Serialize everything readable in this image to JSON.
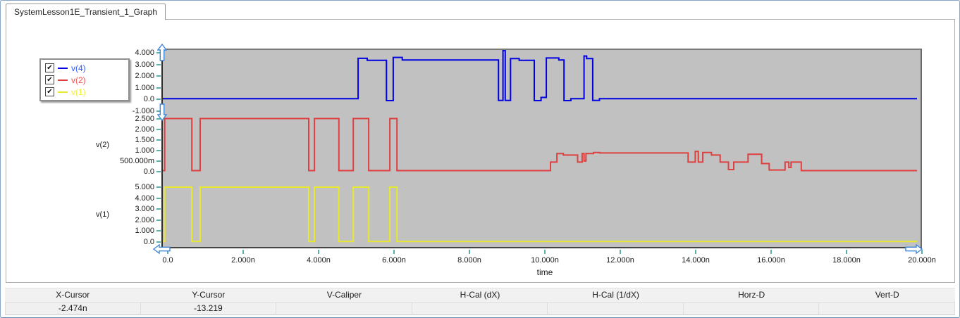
{
  "window": {
    "tab_label": "SystemLesson1E_Transient_1_Graph"
  },
  "legend": {
    "items": [
      {
        "label": "v(4)",
        "color": "#2e5bff",
        "line_color": "#0000e0",
        "checked": true
      },
      {
        "label": "v(2)",
        "color": "#f25050",
        "line_color": "#de4040",
        "checked": true
      },
      {
        "label": "v(1)",
        "color": "#f0f03c",
        "line_color": "#e8e82e",
        "checked": true
      }
    ],
    "check_glyph": "✔"
  },
  "chart_data": {
    "type": "line",
    "title": "",
    "xlabel": "time",
    "x_unit": "ns",
    "xlim": [
      0,
      20
    ],
    "grid": false,
    "tick_color": "#58b1ad",
    "background": "#c1c1c1",
    "x_ticks": [
      {
        "label": "0.0",
        "t": 0
      },
      {
        "label": "2.000n",
        "t": 2
      },
      {
        "label": "4.000n",
        "t": 4
      },
      {
        "label": "6.000n",
        "t": 6
      },
      {
        "label": "8.000n",
        "t": 8
      },
      {
        "label": "10.000n",
        "t": 10
      },
      {
        "label": "12.000n",
        "t": 12
      },
      {
        "label": "14.000n",
        "t": 14
      },
      {
        "label": "16.000n",
        "t": 16
      },
      {
        "label": "18.000n",
        "t": 18
      },
      {
        "label": "20.000n",
        "t": 20
      }
    ],
    "panels": [
      {
        "name": "v(4)",
        "color": "#0000e0",
        "ylim": [
          -1.45,
          4.25
        ],
        "y_ticks": [
          {
            "label": "4.000",
            "v": 4
          },
          {
            "label": "3.000",
            "v": 3
          },
          {
            "label": "2.000",
            "v": 2
          },
          {
            "label": "1.000",
            "v": 1
          },
          {
            "label": "0.0",
            "v": 0
          },
          {
            "label": "-1.000",
            "v": -1
          }
        ],
        "steps": [
          [
            0,
            0.05
          ],
          [
            5.18,
            3.52
          ],
          [
            5.42,
            3.35
          ],
          [
            5.93,
            -0.12
          ],
          [
            6.11,
            3.6
          ],
          [
            6.35,
            3.38
          ],
          [
            8.9,
            -0.1
          ],
          [
            9.02,
            4.2
          ],
          [
            9.08,
            -0.1
          ],
          [
            9.22,
            3.5
          ],
          [
            9.45,
            3.35
          ],
          [
            9.85,
            -0.12
          ],
          [
            10.03,
            0.15
          ],
          [
            10.17,
            3.55
          ],
          [
            10.5,
            3.38
          ],
          [
            10.64,
            -0.12
          ],
          [
            10.82,
            0.05
          ],
          [
            11.17,
            3.72
          ],
          [
            11.24,
            3.5
          ],
          [
            11.4,
            -0.1
          ],
          [
            11.58,
            0.05
          ],
          [
            20,
            0.05
          ]
        ]
      },
      {
        "name": "v(2)",
        "color": "#de4040",
        "ylim": [
          -0.35,
          2.75
        ],
        "y_ticks": [
          {
            "label": "2.500",
            "v": 2.5
          },
          {
            "label": "2.000",
            "v": 2
          },
          {
            "label": "1.500",
            "v": 1.5
          },
          {
            "label": "1.000",
            "v": 1
          },
          {
            "label": "500.000m",
            "v": 0.5
          },
          {
            "label": "0.0",
            "v": 0
          }
        ],
        "steps": [
          [
            0,
            0.05
          ],
          [
            0.05,
            2.5
          ],
          [
            0.77,
            0.05
          ],
          [
            0.99,
            2.5
          ],
          [
            3.87,
            0.05
          ],
          [
            4.02,
            2.5
          ],
          [
            4.67,
            0.05
          ],
          [
            5.05,
            2.5
          ],
          [
            5.46,
            0.05
          ],
          [
            6.02,
            2.5
          ],
          [
            6.21,
            0.05
          ],
          [
            10.28,
            0.45
          ],
          [
            10.45,
            0.85
          ],
          [
            10.62,
            0.78
          ],
          [
            11.0,
            0.45
          ],
          [
            11.12,
            0.85
          ],
          [
            11.17,
            0.5
          ],
          [
            11.22,
            0.85
          ],
          [
            11.42,
            0.9
          ],
          [
            11.58,
            0.88
          ],
          [
            13.93,
            0.45
          ],
          [
            14.12,
            0.95
          ],
          [
            14.2,
            0.45
          ],
          [
            14.32,
            0.9
          ],
          [
            14.55,
            0.78
          ],
          [
            14.78,
            0.45
          ],
          [
            15.0,
            0.1
          ],
          [
            15.14,
            0.45
          ],
          [
            15.52,
            0.82
          ],
          [
            15.88,
            0.38
          ],
          [
            16.08,
            0.08
          ],
          [
            16.5,
            0.45
          ],
          [
            16.6,
            0.2
          ],
          [
            16.66,
            0.45
          ],
          [
            16.93,
            0.05
          ],
          [
            20,
            0.05
          ]
        ]
      },
      {
        "name": "v(1)",
        "color": "#e8e82e",
        "ylim": [
          -0.45,
          5.35
        ],
        "y_ticks": [
          {
            "label": "5.000",
            "v": 5
          },
          {
            "label": "4.000",
            "v": 4
          },
          {
            "label": "3.000",
            "v": 3
          },
          {
            "label": "2.000",
            "v": 2
          },
          {
            "label": "1.000",
            "v": 1
          },
          {
            "label": "0.0",
            "v": 0
          }
        ],
        "steps": [
          [
            0,
            0.05
          ],
          [
            0.05,
            5.0
          ],
          [
            0.77,
            0.05
          ],
          [
            0.99,
            5.0
          ],
          [
            3.87,
            0.05
          ],
          [
            4.02,
            5.0
          ],
          [
            4.67,
            0.05
          ],
          [
            5.05,
            5.0
          ],
          [
            5.46,
            0.05
          ],
          [
            6.02,
            5.0
          ],
          [
            6.21,
            0.05
          ],
          [
            20,
            0.05
          ]
        ]
      }
    ]
  },
  "readout": {
    "columns": [
      {
        "label": "X-Cursor",
        "value": "-2.474n"
      },
      {
        "label": "Y-Cursor",
        "value": "-13.219"
      },
      {
        "label": "V-Caliper",
        "value": ""
      },
      {
        "label": "H-Cal (dX)",
        "value": ""
      },
      {
        "label": "H-Cal (1/dX)",
        "value": ""
      },
      {
        "label": "Horz-D",
        "value": ""
      },
      {
        "label": "Vert-D",
        "value": ""
      }
    ]
  }
}
